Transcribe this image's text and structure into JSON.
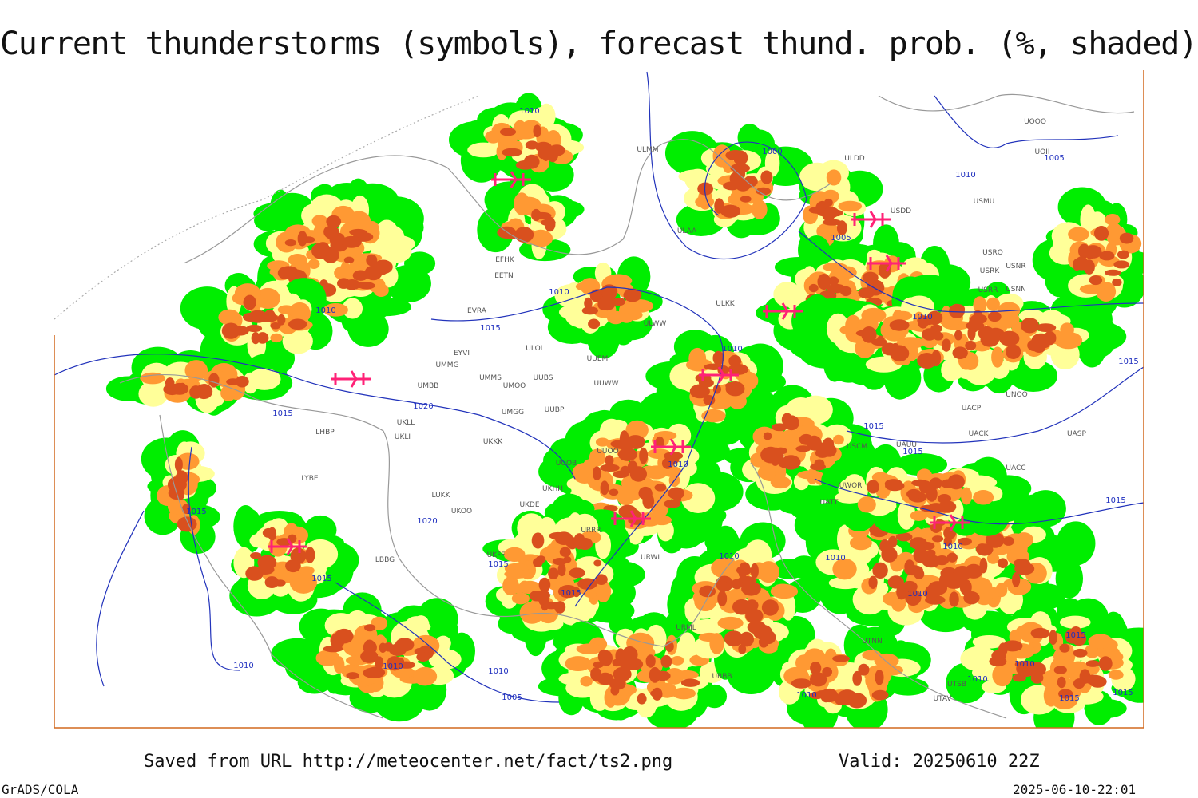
{
  "title": "Current thunderstorms (symbols), forecast thund. prob. (%, shaded)",
  "map": {
    "isobar_labels": [
      "1010",
      "1000",
      "1005",
      "1010",
      "1005",
      "1010",
      "1015",
      "1010",
      "1010",
      "1010",
      "1015",
      "1015",
      "1020",
      "1015",
      "1015",
      "1010",
      "1015",
      "1020",
      "1015",
      "1010",
      "1010",
      "1010",
      "1015",
      "1015",
      "1015",
      "1010",
      "1015",
      "1010",
      "1010",
      "1010",
      "1005",
      "1010",
      "1015",
      "1015",
      "1010",
      "1010"
    ],
    "station_labels": [
      "ULMM",
      "ULDD",
      "UOOO",
      "UOII",
      "USDD",
      "USMU",
      "ULAA",
      "USRO",
      "USRK",
      "USNR",
      "USRR",
      "USNN",
      "EFHK",
      "EETN",
      "ULKK",
      "EVRA",
      "ULWW",
      "EYVI",
      "UMMG",
      "UUEM",
      "UMMS",
      "UMOO",
      "UUBS",
      "UMBB",
      "UUWW",
      "UACP",
      "UNOO",
      "UUBP",
      "UMGG",
      "UKLL",
      "UKLI",
      "UKKK",
      "UACK",
      "UASP",
      "UUOO",
      "UUOB",
      "USCM",
      "UAUU",
      "UACC",
      "UKHH",
      "UWOR",
      "UATT",
      "UKOO",
      "UKDE",
      "LUKK",
      "UKFF",
      "URRR",
      "URWI",
      "LBBG",
      "URML",
      "UBBB",
      "UTSB",
      "UTAV",
      "UTNN",
      "LYBE",
      "LHBP",
      "ULOL"
    ]
  },
  "footer": {
    "source": "Saved from URL http://meteocenter.net/fact/ts2.png",
    "valid": "Valid: 20250610 22Z",
    "software": "GrADS/COLA",
    "timestamp": "2025-06-10-22:01"
  }
}
